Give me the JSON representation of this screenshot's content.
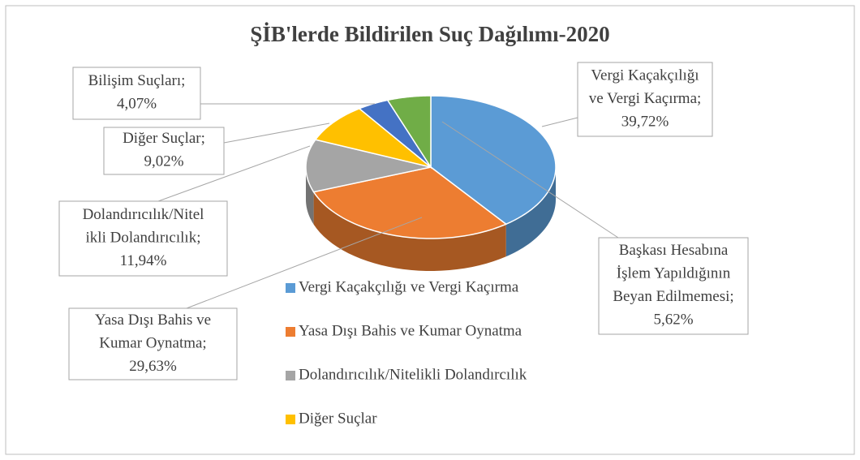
{
  "chart_data": {
    "type": "pie3d",
    "title": "ŞİB'lerde Bildirilen Suç Dağılımı-2020",
    "categories": [
      "Vergi Kaçakçılığı ve Vergi Kaçırma",
      "Yasa Dışı Bahis ve Kumar Oynatma",
      "Dolandırıcılık/Nitelikli Dolandırıcılık",
      "Diğer Suçlar",
      "Bilişim Suçları",
      "Başkası Hesabına İşlem Yapıldığının Beyan Edilmemesi"
    ],
    "data_labels": [
      [
        "Vergi Kaçakçılığı",
        "ve Vergi Kaçırma;"
      ],
      [
        "Yasa Dışı Bahis ve",
        "Kumar Oynatma;"
      ],
      [
        "Dolandırıcılık/Nitel",
        "ikli Dolandırıcılık;"
      ],
      [
        "Diğer Suçlar;"
      ],
      [
        "Bilişim Suçları;"
      ],
      [
        "Başkası Hesabına",
        "İşlem Yapıldığının",
        "Beyan Edilmemesi;"
      ]
    ],
    "values": [
      39.72,
      29.63,
      11.94,
      9.02,
      4.07,
      5.62
    ],
    "value_labels": [
      "39,72%",
      "29,63%",
      "11,94%",
      "9,02%",
      "4,07%",
      "5,62%"
    ],
    "colors": [
      "#5b9bd5",
      "#ed7d31",
      "#a5a5a5",
      "#ffc000",
      "#4472c4",
      "#70ad47"
    ],
    "legend": {
      "position": "right",
      "entries": [
        "Vergi Kaçakçılığı ve Vergi Kaçırma",
        "Yasa Dışı Bahis ve Kumar Oynatma",
        "Dolandırıcılık/Nitelikli Dolandırcılık",
        "Diğer Suçlar"
      ]
    }
  }
}
